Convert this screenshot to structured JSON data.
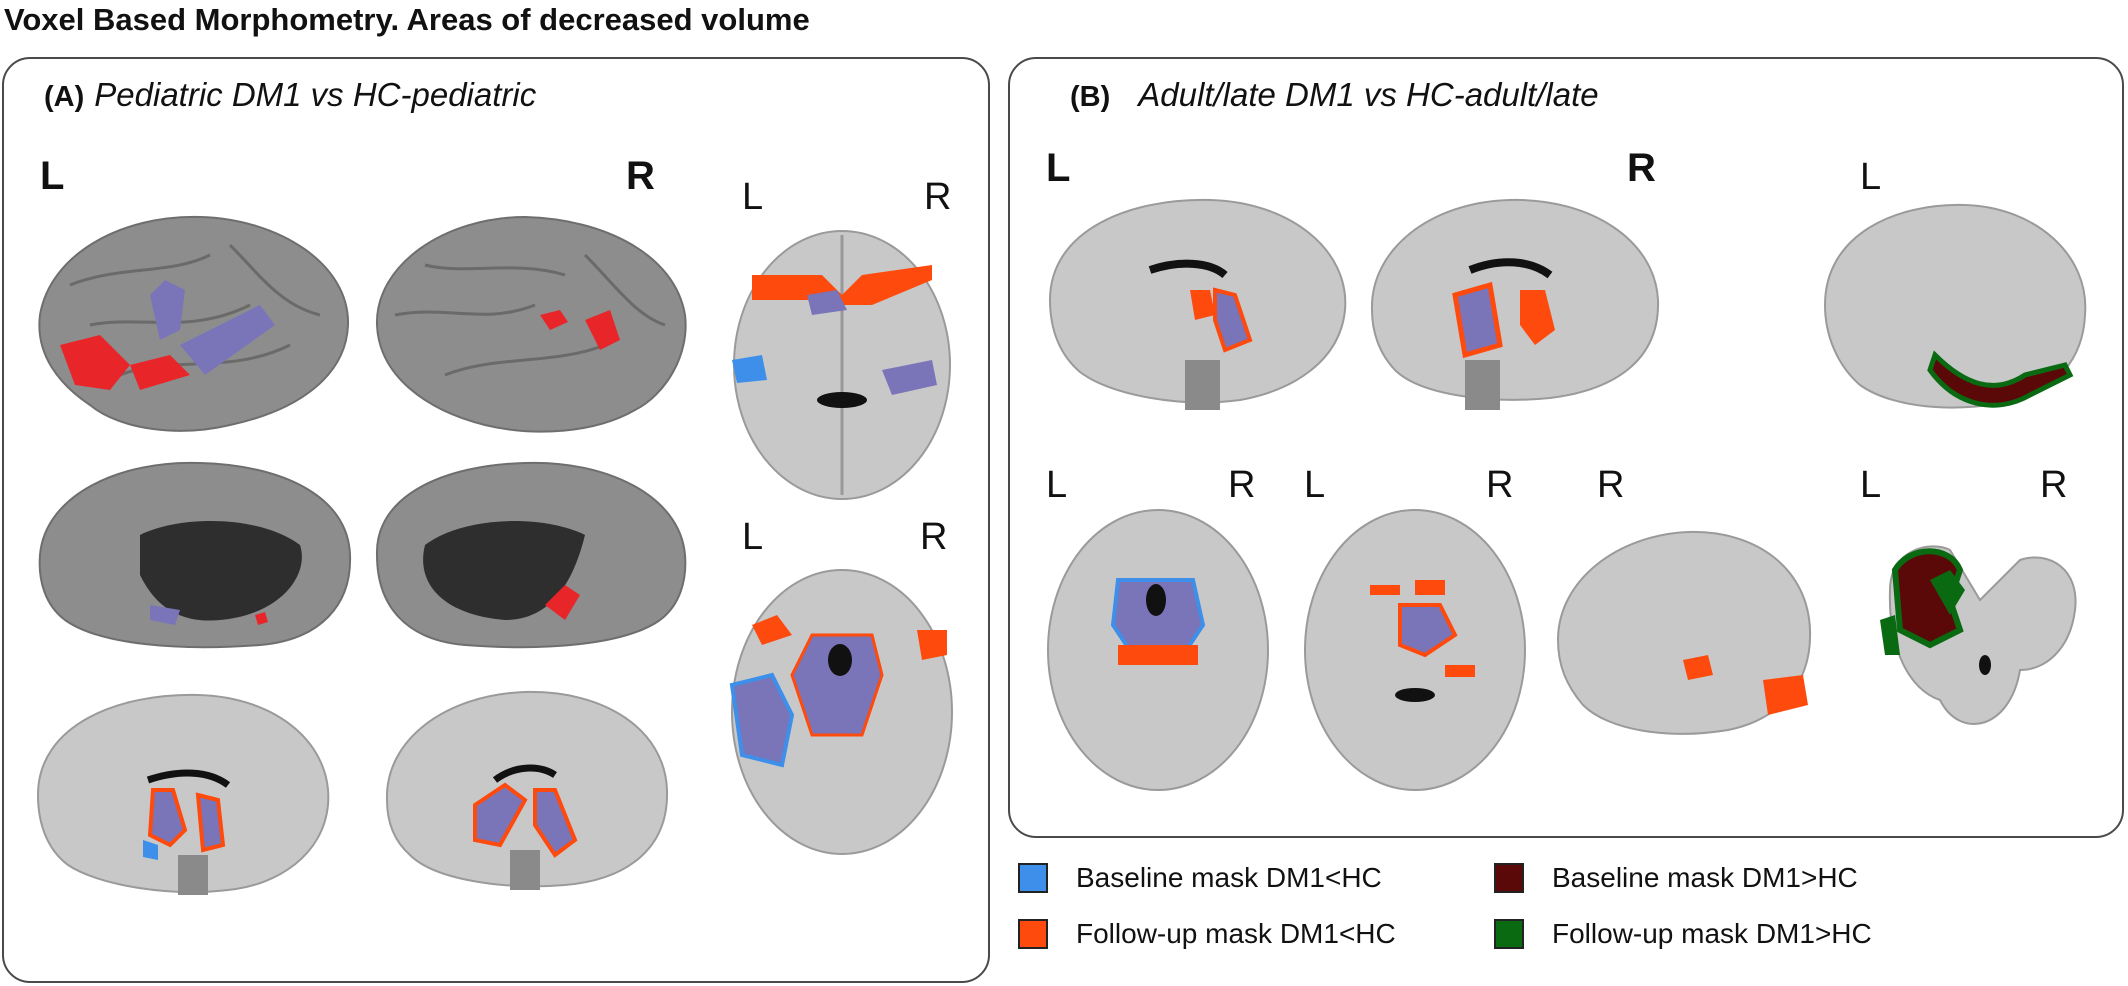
{
  "figure_title": "Voxel Based Morphometry. Areas of decreased volume",
  "panel_a": {
    "letter": "(A)",
    "title": "Pediatric DM1 vs HC-pediatric",
    "lbl_left": "L",
    "lbl_right": "R",
    "axial_top_l": "L",
    "axial_top_r": "R",
    "axial_bot_l": "L",
    "axial_bot_r": "R"
  },
  "panel_b": {
    "letter": "(B)",
    "title": "Adult/late DM1 vs HC-adult/late",
    "lbl_left": "L",
    "lbl_right": "R",
    "sag_right_l": "L",
    "axial1_l": "L",
    "axial1_r": "R",
    "axial2_l": "L",
    "axial2_r": "R",
    "sag_bottom_r": "R",
    "cor_l": "L",
    "cor_r": "R"
  },
  "legend": [
    {
      "label": "Baseline mask DM1<HC",
      "color": "#3d8fea"
    },
    {
      "label": "Follow-up mask DM1<HC",
      "color": "#ff4a0d"
    },
    {
      "label": "Baseline mask DM1>HC",
      "color": "#5a0808"
    },
    {
      "label": "Follow-up mask DM1>HC",
      "color": "#0a6a12"
    }
  ],
  "colors": {
    "brain_gray": "#bdbdbd",
    "surface_gray": "#8a8a8a",
    "overlap_purple": "#7a74b8",
    "red_cluster": "#e8262a"
  }
}
